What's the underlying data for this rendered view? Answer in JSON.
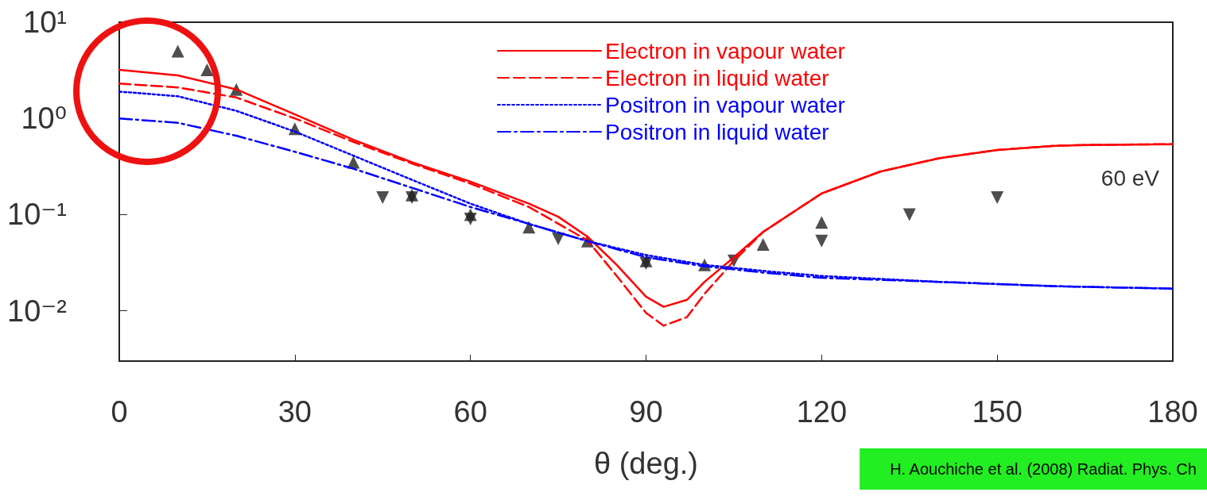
{
  "chart_data": {
    "type": "line",
    "xlabel": "θ (deg.)",
    "log": "y",
    "grid": false,
    "legend": "top",
    "xlim": [
      0,
      180
    ],
    "xticks": [
      0,
      30,
      60,
      90,
      120,
      150,
      180
    ],
    "ylim": [
      0.003,
      10
    ],
    "yticks": [
      {
        "value": 0.01,
        "label": "10⁻²"
      },
      {
        "value": 0.1,
        "label": "10⁻¹"
      },
      {
        "value": 1,
        "label": "10⁰"
      },
      {
        "value": 10,
        "label": "10¹"
      }
    ],
    "series": [
      {
        "name": "Electron in vapour water",
        "color": "#ff0000",
        "line_style": "solid",
        "marker": "none",
        "x": [
          0,
          10,
          20,
          30,
          40,
          50,
          60,
          70,
          75,
          80,
          85,
          90,
          93,
          97,
          100,
          105,
          110,
          120,
          130,
          140,
          150,
          160,
          165,
          180
        ],
        "values": [
          3.2,
          2.8,
          2.0,
          1.1,
          0.6,
          0.35,
          0.22,
          0.13,
          0.095,
          0.059,
          0.03,
          0.014,
          0.011,
          0.013,
          0.02,
          0.036,
          0.066,
          0.166,
          0.28,
          0.385,
          0.47,
          0.52,
          0.53,
          0.54
        ]
      },
      {
        "name": "Electron in liquid water",
        "color": "#ff0000",
        "line_style": "dashed",
        "marker": "none",
        "x": [
          0,
          10,
          20,
          30,
          40,
          50,
          60,
          70,
          80,
          85,
          90,
          93,
          97,
          100,
          105,
          110,
          120,
          130,
          140,
          150,
          160,
          165,
          180
        ],
        "values": [
          2.3,
          2.1,
          1.65,
          1.0,
          0.57,
          0.34,
          0.21,
          0.12,
          0.054,
          0.023,
          0.0095,
          0.007,
          0.0086,
          0.015,
          0.033,
          0.066,
          0.166,
          0.28,
          0.385,
          0.47,
          0.52,
          0.53,
          0.54
        ]
      },
      {
        "name": "Positron in vapour water",
        "color": "#0000ff",
        "line_style": "dotted",
        "marker": "none",
        "x": [
          0,
          10,
          20,
          30,
          40,
          50,
          60,
          70,
          80,
          90,
          100,
          110,
          120,
          140,
          160,
          180
        ],
        "values": [
          1.9,
          1.7,
          1.2,
          0.73,
          0.41,
          0.23,
          0.13,
          0.08,
          0.053,
          0.038,
          0.03,
          0.026,
          0.023,
          0.02,
          0.018,
          0.017
        ]
      },
      {
        "name": "Positron in liquid water",
        "color": "#0000ff",
        "line_style": "dashdot",
        "marker": "none",
        "x": [
          0,
          10,
          20,
          30,
          40,
          50,
          60,
          70,
          80,
          90,
          100,
          110,
          120,
          140,
          160,
          180
        ],
        "values": [
          1.0,
          0.9,
          0.66,
          0.45,
          0.3,
          0.19,
          0.12,
          0.08,
          0.053,
          0.036,
          0.029,
          0.025,
          0.022,
          0.02,
          0.018,
          0.017
        ]
      },
      {
        "type": "scatter",
        "color": "#222222",
        "marker": "triangle",
        "x": [
          10,
          15,
          20,
          30,
          40,
          50,
          60,
          70,
          80,
          90,
          100,
          110,
          120
        ],
        "values": [
          5.0,
          3.2,
          2.0,
          0.78,
          0.35,
          0.16,
          0.1,
          0.074,
          0.053,
          0.033,
          0.03,
          0.049,
          0.083
        ]
      },
      {
        "type": "scatter",
        "color": "#222222",
        "marker": "triangle-down",
        "x": [
          45,
          50,
          60,
          75,
          90,
          105,
          120,
          135,
          150
        ],
        "values": [
          0.15,
          0.15,
          0.09,
          0.056,
          0.031,
          0.033,
          0.053,
          0.1,
          0.15
        ]
      }
    ],
    "annotations": [
      "60 eV",
      "H. Aouchiche et al. (2008) Radiat. Phys. Ch"
    ]
  }
}
